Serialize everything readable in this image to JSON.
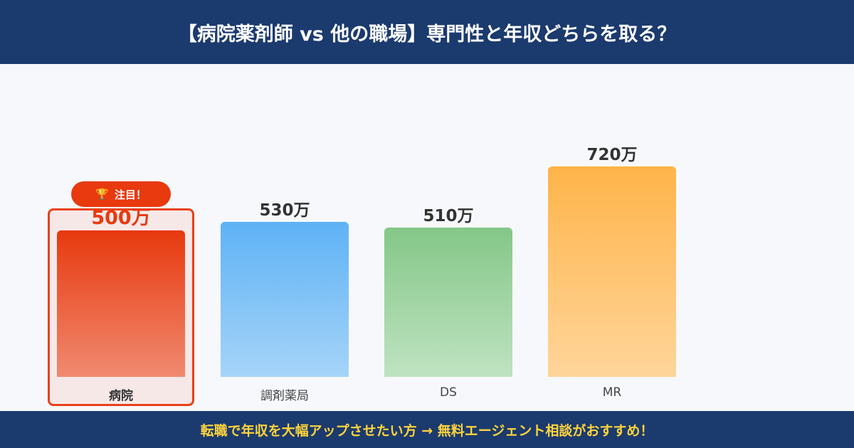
{
  "header": {
    "title": "【病院薬剤師 vs 他の職場】専門性と年収どちらを取る？"
  },
  "footer": {
    "text": "転職で年収を大幅アップさせたい方 → 無料エージェント相談がおすすめ！"
  },
  "badge": {
    "icon": "trophy-icon",
    "label": "注目！"
  },
  "chart_data": {
    "type": "bar",
    "categories": [
      "病院",
      "調剤薬局",
      "DS",
      "MR"
    ],
    "values": [
      500,
      530,
      510,
      720
    ],
    "value_labels": [
      "500万",
      "530万",
      "510万",
      "720万"
    ],
    "highlight": "病院",
    "colors": [
      [
        "#e8390f",
        "#f08a70"
      ],
      [
        "#5eb2f5",
        "#a6d4f8"
      ],
      [
        "#84c788",
        "#bfe3c1"
      ],
      [
        "#ffb44a",
        "#ffd59a"
      ]
    ],
    "ylim": [
      0,
      720
    ]
  }
}
